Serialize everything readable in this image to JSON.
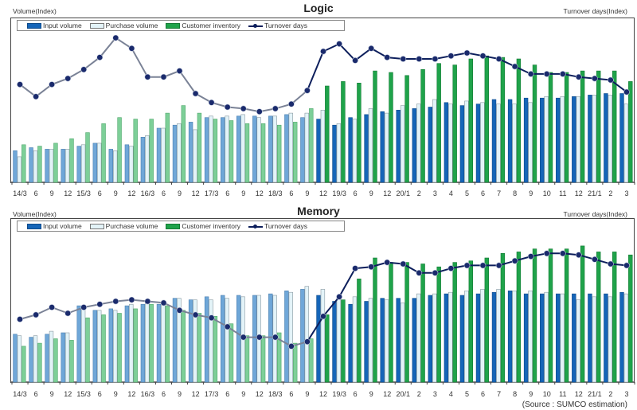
{
  "source_note": "(Source :  SUMCO estimation)",
  "legend": {
    "input": "Input volume",
    "purchase": "Purchase volume",
    "inventory": "Customer inventory",
    "turnover": "Turnover days"
  },
  "colors": {
    "input_early": "#6fa7d8",
    "input_late": "#1565b8",
    "purchase": "#e3f3f8",
    "inventory_early": "#7dcf98",
    "inventory_late": "#1fa34a",
    "turnover_early": "#7a8296",
    "turnover_late": "#0d1f5c",
    "marker": "#1a2a6c"
  },
  "chart_data": [
    {
      "type": "bar",
      "title": "Logic",
      "ylabel": "Volume(Index)",
      "y2label": "Turnover days(Index)",
      "note": "Values are relative index estimates (no tick values shown); 0 = axis baseline, 100 = top of plot area",
      "ylim": [
        0,
        100
      ],
      "y2lim": [
        0,
        100
      ],
      "highlight_from_index": 19,
      "categories": [
        "14/3",
        "6",
        "9",
        "12",
        "15/3",
        "6",
        "9",
        "12",
        "16/3",
        "6",
        "9",
        "12",
        "17/3",
        "6",
        "9",
        "12",
        "18/3",
        "6",
        "9",
        "12",
        "19/3",
        "6",
        "9",
        "12",
        "20/1",
        "2",
        "3",
        "4",
        "5",
        "6",
        "7",
        "8",
        "9",
        "10",
        "11",
        "12",
        "21/1",
        "2",
        "3"
      ],
      "series": [
        {
          "name": "Input volume",
          "kind": "bar",
          "values": [
            21,
            23,
            22,
            22,
            24,
            26,
            22,
            25,
            30,
            36,
            38,
            40,
            43,
            43,
            44,
            44,
            44,
            45,
            43,
            42,
            38,
            43,
            45,
            47,
            48,
            49,
            50,
            53,
            51,
            52,
            55,
            55,
            56,
            56,
            56,
            57,
            58,
            59,
            59
          ]
        },
        {
          "name": "Purchase volume",
          "kind": "bar",
          "values": [
            17,
            21,
            22,
            22,
            25,
            26,
            21,
            24,
            31,
            36,
            39,
            35,
            44,
            44,
            45,
            43,
            44,
            46,
            46,
            48,
            39,
            42,
            49,
            46,
            51,
            52,
            55,
            52,
            54,
            53,
            52,
            52,
            53,
            57,
            57,
            57,
            58,
            58,
            52
          ]
        },
        {
          "name": "Customer inventory",
          "kind": "bar",
          "values": [
            25,
            24,
            26,
            29,
            33,
            39,
            43,
            42,
            42,
            46,
            51,
            46,
            42,
            41,
            39,
            39,
            38,
            40,
            49,
            64,
            67,
            66,
            74,
            73,
            71,
            75,
            79,
            78,
            82,
            84,
            83,
            82,
            78,
            73,
            73,
            74,
            74,
            74,
            67
          ]
        },
        {
          "name": "Turnover days",
          "kind": "line",
          "axis": "right",
          "values": [
            65,
            57,
            65,
            69,
            75,
            83,
            96,
            89,
            70,
            70,
            74,
            59,
            53,
            50,
            49,
            47,
            49,
            52,
            61,
            87,
            92,
            81,
            89,
            83,
            82,
            82,
            82,
            84,
            86,
            84,
            82,
            77,
            72,
            72,
            72,
            70,
            69,
            68,
            60
          ]
        }
      ]
    },
    {
      "type": "bar",
      "title": "Memory",
      "ylabel": "Volume(Index)",
      "y2label": "Turnover days(Index)",
      "note": "Values are relative index estimates (no tick values shown); 0 = axis baseline, 100 = top of plot area",
      "ylim": [
        0,
        100
      ],
      "y2lim": [
        0,
        100
      ],
      "highlight_from_index": 19,
      "categories": [
        "14/3",
        "6",
        "9",
        "12",
        "15/3",
        "6",
        "9",
        "12",
        "16/3",
        "6",
        "9",
        "12",
        "17/3",
        "6",
        "9",
        "12",
        "18/3",
        "6",
        "9",
        "12",
        "19/3",
        "6",
        "9",
        "12",
        "20/1",
        "2",
        "3",
        "4",
        "5",
        "6",
        "7",
        "8",
        "9",
        "10",
        "11",
        "12",
        "21/1",
        "2",
        "3"
      ],
      "series": [
        {
          "name": "Input volume",
          "kind": "bar",
          "values": [
            32,
            30,
            32,
            33,
            51,
            48,
            49,
            51,
            52,
            52,
            56,
            55,
            57,
            58,
            58,
            58,
            59,
            61,
            62,
            58,
            54,
            52,
            54,
            56,
            56,
            56,
            58,
            59,
            58,
            59,
            60,
            61,
            59,
            59,
            59,
            59,
            59,
            59,
            60
          ]
        },
        {
          "name": "Purchase volume",
          "kind": "bar",
          "values": [
            31,
            31,
            34,
            33,
            51,
            48,
            48,
            52,
            53,
            52,
            56,
            55,
            55,
            56,
            57,
            58,
            58,
            60,
            64,
            62,
            56,
            57,
            56,
            55,
            53,
            59,
            59,
            60,
            61,
            62,
            62,
            61,
            61,
            60,
            59,
            55,
            57,
            57,
            59
          ]
        },
        {
          "name": "Customer inventory",
          "kind": "bar",
          "values": [
            24,
            26,
            29,
            28,
            43,
            45,
            46,
            49,
            52,
            51,
            48,
            46,
            44,
            39,
            31,
            31,
            33,
            26,
            29,
            45,
            55,
            69,
            83,
            80,
            80,
            79,
            77,
            80,
            81,
            83,
            86,
            87,
            89,
            89,
            89,
            91,
            87,
            87,
            85
          ]
        },
        {
          "name": "Turnover days",
          "kind": "line",
          "axis": "right",
          "values": [
            42,
            45,
            50,
            46,
            50,
            52,
            54,
            55,
            54,
            53,
            48,
            45,
            43,
            37,
            30,
            30,
            30,
            24,
            27,
            44,
            57,
            76,
            77,
            80,
            79,
            73,
            73,
            76,
            78,
            78,
            78,
            81,
            84,
            86,
            86,
            85,
            82,
            79,
            78
          ]
        }
      ]
    }
  ]
}
